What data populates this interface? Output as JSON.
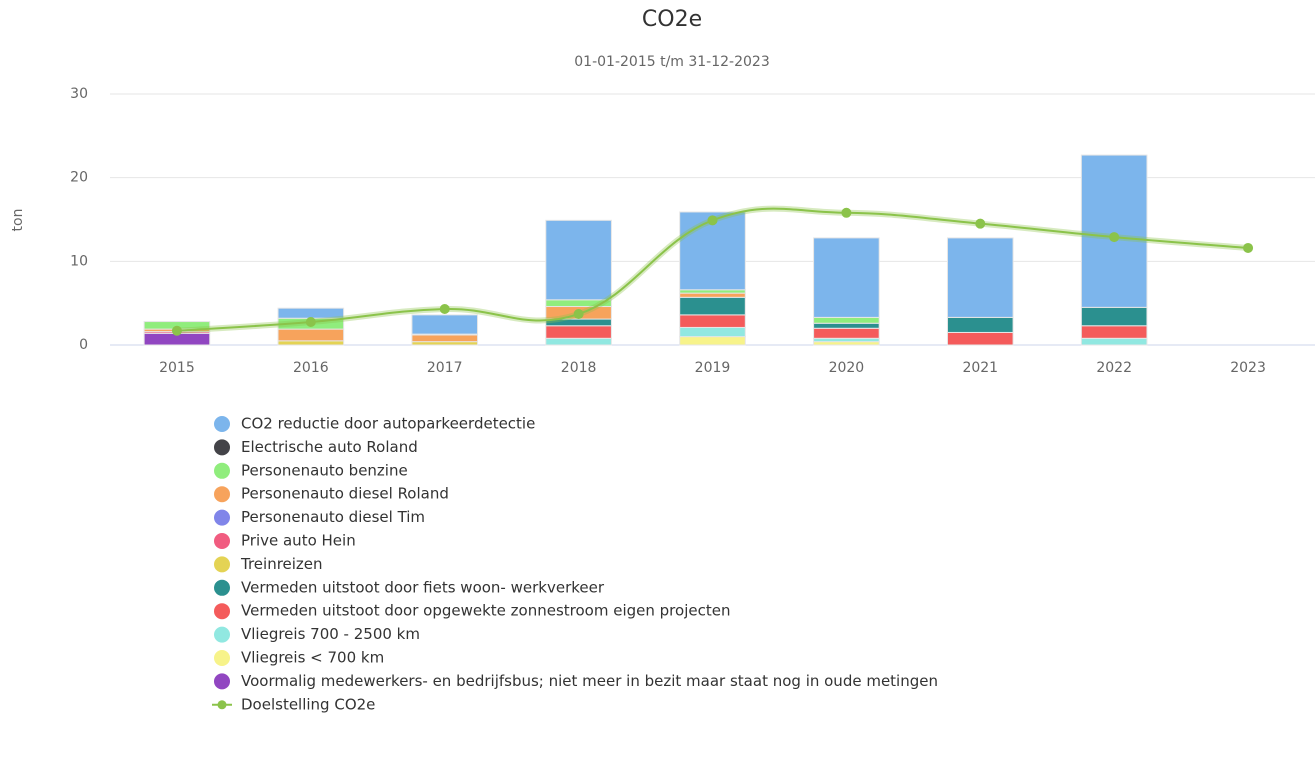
{
  "chart_data": {
    "type": "bar",
    "stacked": true,
    "title": "CO2e",
    "subtitle": "01-01-2015 t/m 31-12-2023",
    "y_label": "ton",
    "categories": [
      "2015",
      "2016",
      "2017",
      "2018",
      "2019",
      "2020",
      "2021",
      "2022",
      "2023"
    ],
    "ylim": [
      0,
      30
    ],
    "yticks": [
      0,
      10,
      20,
      30
    ],
    "grid": true,
    "legend": "bottom",
    "series": [
      {
        "name": "CO2 reductie door autoparkeerdetectie",
        "color": "#7cb5ec",
        "values": [
          null,
          1.2,
          2.3,
          9.5,
          9.3,
          9.5,
          9.5,
          18.2,
          null
        ]
      },
      {
        "name": "Electrische auto Roland",
        "color": "#434348",
        "values": [
          null,
          null,
          null,
          null,
          null,
          null,
          null,
          null,
          null
        ]
      },
      {
        "name": "Personenauto benzine",
        "color": "#90ed7d",
        "values": [
          0.9,
          1.3,
          0.1,
          0.8,
          0.4,
          0.7,
          null,
          null,
          null
        ]
      },
      {
        "name": "Personenauto diesel Roland",
        "color": "#f7a35c",
        "values": [
          0.3,
          1.4,
          0.8,
          1.5,
          0.5,
          null,
          null,
          null,
          null
        ]
      },
      {
        "name": "Personenauto diesel Tim",
        "color": "#8085e9",
        "values": [
          null,
          null,
          null,
          null,
          null,
          null,
          null,
          null,
          null
        ]
      },
      {
        "name": "Prive auto Hein",
        "color": "#f15c80",
        "values": [
          0.2,
          null,
          null,
          null,
          null,
          null,
          null,
          null,
          null
        ]
      },
      {
        "name": "Treinreizen",
        "color": "#e4d354",
        "values": [
          null,
          0.5,
          0.4,
          null,
          null,
          null,
          null,
          null,
          null
        ]
      },
      {
        "name": "Vermeden uitstoot door fiets woon- werkverkeer",
        "color": "#2b908f",
        "values": [
          null,
          null,
          null,
          0.8,
          2.1,
          0.6,
          1.8,
          2.2,
          null
        ]
      },
      {
        "name": "Vermeden uitstoot door opgewekte zonnestroom eigen projecten",
        "color": "#f45b5b",
        "values": [
          null,
          null,
          null,
          1.5,
          1.5,
          1.2,
          1.5,
          1.5,
          null
        ]
      },
      {
        "name": "Vliegreis 700 - 2500 km",
        "color": "#91e8e1",
        "values": [
          null,
          null,
          null,
          0.8,
          1.1,
          0.4,
          null,
          0.8,
          null
        ]
      },
      {
        "name": "Vliegreis < 700 km",
        "color": "#f7f38a",
        "values": [
          null,
          null,
          null,
          null,
          1.0,
          0.4,
          null,
          null,
          null
        ]
      },
      {
        "name": "Voormalig medewerkers- en bedrijfsbus; niet meer in bezit maar staat nog in oude metingen",
        "color": "#9146c1",
        "values": [
          1.4,
          null,
          null,
          null,
          null,
          null,
          null,
          null,
          null
        ]
      },
      {
        "name": "Doelstelling CO2e",
        "type": "line",
        "color": "#8bc34a",
        "values": [
          1.7,
          2.75,
          4.3,
          3.7,
          14.9,
          15.8,
          14.5,
          12.9,
          11.6
        ]
      }
    ]
  }
}
